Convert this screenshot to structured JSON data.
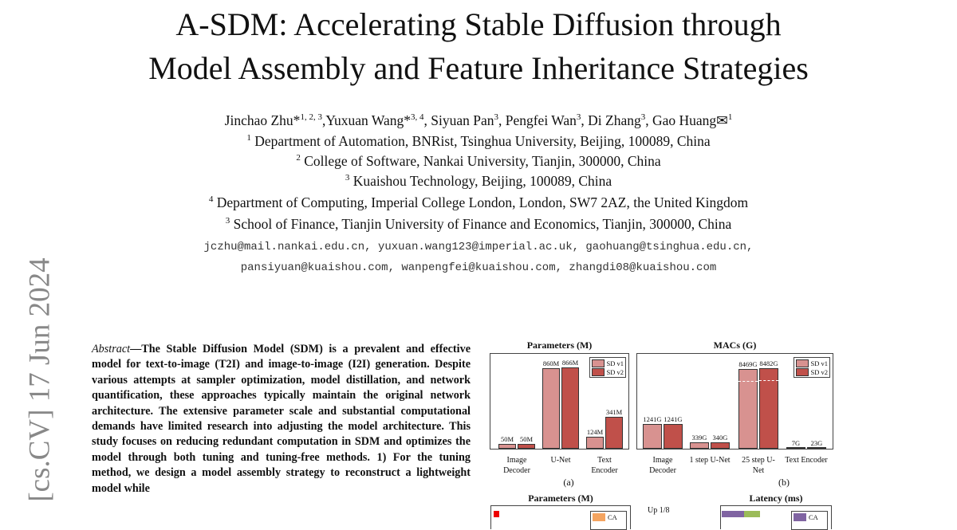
{
  "title_lines": [
    "A-SDM: Accelerating Stable Diffusion through",
    "Model Assembly and Feature Inheritance Strategies"
  ],
  "authors": [
    {
      "name": "Jinchao Zhu*",
      "sup": "1, 2, 3"
    },
    {
      "name": "Yuxuan Wang*",
      "sup": "3, 4"
    },
    {
      "name": "Siyuan Pan",
      "sup": "3"
    },
    {
      "name": "Pengfei Wan",
      "sup": "3"
    },
    {
      "name": "Di Zhang",
      "sup": "3"
    },
    {
      "name": "Gao Huang✉",
      "sup": "1"
    }
  ],
  "affiliations": [
    {
      "sup": "1",
      "text": "Department of Automation, BNRist, Tsinghua University, Beijing, 100089, China"
    },
    {
      "sup": "2",
      "text": "College of Software, Nankai University, Tianjin, 300000, China"
    },
    {
      "sup": "3",
      "text": "Kuaishou Technology, Beijing, 100089, China"
    },
    {
      "sup": "4",
      "text": "Department of Computing, Imperial College London, London, SW7 2AZ, the United Kingdom"
    },
    {
      "sup": "3",
      "text": "School of Finance, Tianjin University of Finance and Economics, Tianjin, 300000, China"
    }
  ],
  "emails": [
    "jczhu@mail.nankai.edu.cn, yuxuan.wang123@imperial.ac.uk, gaohuang@tsinghua.edu.cn,",
    "pansiyuan@kuaishou.com, wanpengfei@kuaishou.com, zhangdi08@kuaishou.com"
  ],
  "arxiv_stamp": "[cs.CV]  17 Jun 2024",
  "abstract": {
    "label": "Abstract",
    "text": "—The Stable Diffusion Model (SDM) is a prevalent and effective model for text-to-image (T2I) and image-to-image (I2I) generation. Despite various attempts at sampler optimization, model distillation, and network quantification, these approaches typically maintain the original network architecture. The extensive parameter scale and substantial computational demands have limited research into adjusting the model architecture. This study focuses on reducing redundant computation in SDM and optimizes the model through both tuning and tuning-free methods. 1) For the tuning method, we design a model assembly strategy to reconstruct a lightweight model while"
  },
  "colors": {
    "sd_v1": "#d89290",
    "sd_v2": "#c0504a"
  },
  "chart_data": [
    {
      "type": "bar",
      "title": "Parameters (M)",
      "caption": "(a)",
      "categories": [
        "Image Decoder",
        "U-Net",
        "Text Encoder"
      ],
      "series": [
        {
          "name": "SD v1",
          "values": [
            50,
            860,
            124
          ],
          "labels": [
            "50M",
            "860M",
            "124M"
          ]
        },
        {
          "name": "SD v2",
          "values": [
            50,
            866,
            341
          ],
          "labels": [
            "50M",
            "866M",
            "341M"
          ]
        }
      ],
      "legend": "top-right",
      "ylim": [
        0,
        1000
      ]
    },
    {
      "type": "bar",
      "title": "MACs (G)",
      "caption": "(b)",
      "categories": [
        "Image Decoder",
        "1 step U-Net",
        "25 step U-Net",
        "Text Encoder"
      ],
      "series": [
        {
          "name": "SD v1",
          "values": [
            1241,
            339,
            8469,
            7
          ],
          "labels": [
            "1241G",
            "339G",
            "8469G",
            "7G"
          ]
        },
        {
          "name": "SD v2",
          "values": [
            1241,
            340,
            8482,
            23
          ],
          "labels": [
            "1241G",
            "340G",
            "8482G",
            "23G"
          ]
        }
      ],
      "legend": "top-right",
      "broken_axis": true
    },
    {
      "type": "bar",
      "title": "Parameters (M)",
      "legend_entries": [
        "CA"
      ]
    },
    {
      "type": "bar",
      "title": "Latency (ms)",
      "categories": [
        "Up 1/8"
      ],
      "legend_entries": [
        "CA"
      ]
    }
  ]
}
